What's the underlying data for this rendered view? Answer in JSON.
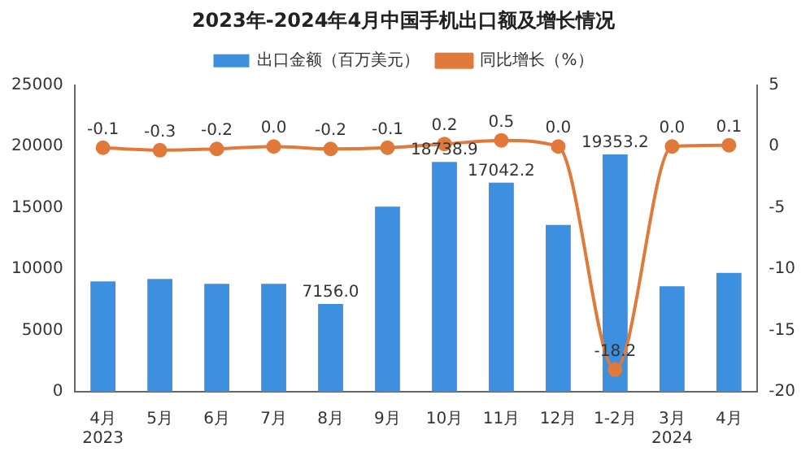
{
  "chart_data": {
    "type": "bar",
    "title": "2023年-2024年4月中国手机出口额及增长情况",
    "categories": [
      "4月\n2023",
      "5月",
      "6月",
      "7月",
      "8月",
      "9月",
      "10月",
      "11月",
      "12月",
      "1-2月",
      "3月\n2024",
      "4月"
    ],
    "series": [
      {
        "name": "出口金额（百万美元）",
        "color": "#3d8fe0",
        "values": [
          9000,
          9200,
          8800,
          8800,
          7156.0,
          15100,
          18738.9,
          17042.2,
          13600,
          19353.2,
          8600,
          9700
        ],
        "value_labels": [
          null,
          null,
          null,
          null,
          "7156.0",
          null,
          "18738.9",
          "17042.2",
          null,
          "19353.2",
          null,
          null
        ]
      },
      {
        "name": "同比增长（%）",
        "type": "line",
        "axis": "y2",
        "color": "#e0793a",
        "values": [
          -0.1,
          -0.3,
          -0.2,
          0.0,
          -0.2,
          -0.1,
          0.2,
          0.5,
          0.0,
          -18.2,
          0.0,
          0.1
        ],
        "value_labels": [
          "-0.1",
          "-0.3",
          "-0.2",
          "0.0",
          "-0.2",
          "-0.1",
          "0.2",
          "0.5",
          "0.0",
          "-18.2",
          "0.0",
          "0.1"
        ]
      }
    ],
    "ylim": [
      0,
      25000
    ],
    "yticks": [
      0,
      5000,
      10000,
      15000,
      20000,
      25000
    ],
    "y2lim": [
      -20,
      5
    ],
    "y2ticks": [
      -20,
      -15,
      -10,
      -5,
      0,
      5
    ],
    "marker": "circle",
    "legend": "top",
    "grid": false
  }
}
